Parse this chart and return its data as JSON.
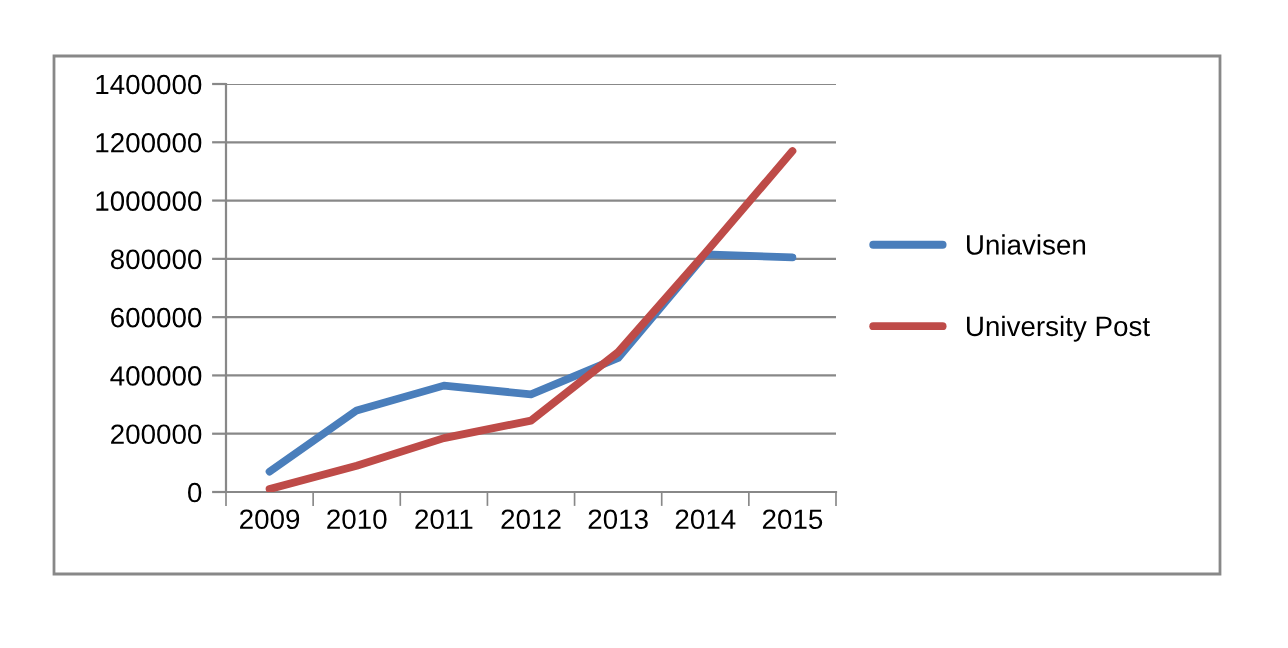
{
  "chart_data": {
    "type": "line",
    "categories": [
      "2009",
      "2010",
      "2011",
      "2012",
      "2013",
      "2014",
      "2015"
    ],
    "series": [
      {
        "name": "Uniavisen",
        "color": "#4a7ebb",
        "values": [
          70000,
          280000,
          365000,
          335000,
          460000,
          815000,
          805000
        ]
      },
      {
        "name": "University Post",
        "color": "#be4b48",
        "values": [
          10000,
          90000,
          185000,
          245000,
          480000,
          820000,
          1170000
        ]
      }
    ],
    "ylim": [
      0,
      1400000
    ],
    "yticks": [
      0,
      200000,
      400000,
      600000,
      800000,
      1000000,
      1200000,
      1400000
    ],
    "grid": "y",
    "legend": "right",
    "marker": "none",
    "line_style": "solid"
  }
}
